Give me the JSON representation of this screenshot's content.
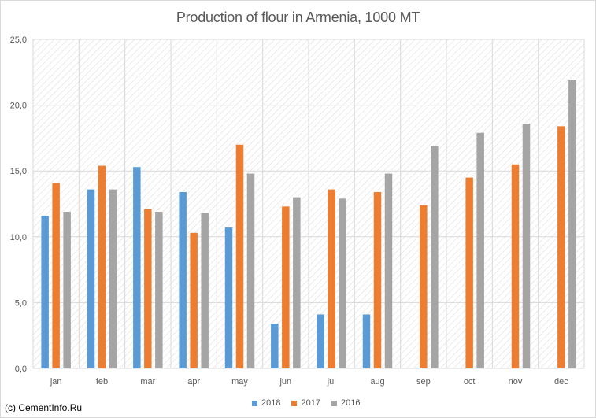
{
  "chart_data": {
    "type": "bar",
    "title": "Production of flour in Armenia, 1000 MT",
    "xlabel": "",
    "ylabel": "",
    "ylim": [
      0,
      25
    ],
    "yticks": [
      "0,0",
      "5,0",
      "10,0",
      "15,0",
      "20,0",
      "25,0"
    ],
    "categories": [
      "jan",
      "feb",
      "mar",
      "apr",
      "may",
      "jun",
      "jul",
      "aug",
      "sep",
      "oct",
      "nov",
      "dec"
    ],
    "series": [
      {
        "name": "2018",
        "color": "#5b9bd5",
        "values": [
          11.6,
          13.6,
          15.3,
          13.4,
          10.7,
          3.4,
          4.1,
          4.1,
          null,
          null,
          null,
          null
        ]
      },
      {
        "name": "2017",
        "color": "#ed7d31",
        "values": [
          14.1,
          15.4,
          12.1,
          10.3,
          17.0,
          12.3,
          13.6,
          13.4,
          12.4,
          14.5,
          15.5,
          18.4
        ]
      },
      {
        "name": "2016",
        "color": "#a5a5a5",
        "values": [
          11.9,
          13.6,
          11.9,
          11.8,
          14.8,
          13.0,
          12.9,
          14.8,
          16.9,
          17.9,
          18.6,
          21.9
        ]
      }
    ],
    "grid": true,
    "legend_position": "bottom"
  },
  "credit": "(c) CementInfo.Ru"
}
